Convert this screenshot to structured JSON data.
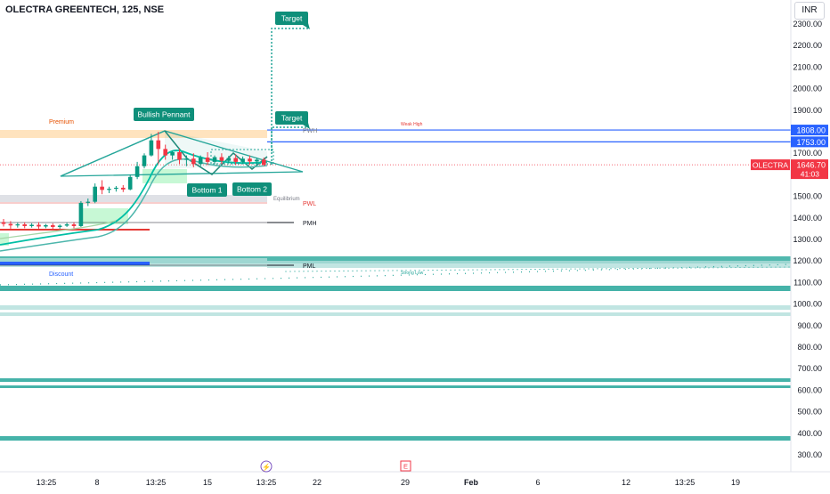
{
  "header": {
    "symbol_title": "OLECTRA GREENTECH, 125, NSE",
    "currency": "INR"
  },
  "colors": {
    "up": "#089981",
    "down": "#f23645",
    "pattern": "#26a69a",
    "blue_level": "#2962ff",
    "premium_zone": "#ffd9a8",
    "accent_label": "#0f8f7a"
  },
  "chart_data": {
    "type": "candlestick",
    "y_axis": {
      "min": 250,
      "max": 2400,
      "ticks": [
        2300,
        2200,
        2100,
        2000,
        1900,
        1800,
        1700,
        1600,
        1500,
        1400,
        1300,
        1200,
        1100,
        1000,
        900,
        800,
        700,
        600,
        500,
        400,
        300
      ],
      "tick_labels": [
        "2300.00",
        "2200.00",
        "2100.00",
        "2000.00",
        "1900.00",
        "1800.00",
        "1700.00",
        "1600.00",
        "1500.00",
        "1400.00",
        "1300.00",
        "1200.00",
        "1100.00",
        "1000.00",
        "900.00",
        "800.00",
        "700.00",
        "600.00",
        "500.00",
        "400.00",
        "300.00"
      ]
    },
    "x_axis": {
      "labels": [
        "13:25",
        "8",
        "13:25",
        "15",
        "13:25",
        "22",
        "29",
        "Feb",
        "6",
        "12",
        "13:25",
        "19"
      ]
    },
    "candles": [
      {
        "o": 1380,
        "h": 1395,
        "c": 1372,
        "l": 1360
      },
      {
        "o": 1372,
        "h": 1385,
        "c": 1365,
        "l": 1350
      },
      {
        "o": 1365,
        "h": 1378,
        "c": 1370,
        "l": 1355
      },
      {
        "o": 1370,
        "h": 1380,
        "c": 1362,
        "l": 1352
      },
      {
        "o": 1362,
        "h": 1375,
        "c": 1368,
        "l": 1355
      },
      {
        "o": 1368,
        "h": 1380,
        "c": 1360,
        "l": 1350
      },
      {
        "o": 1360,
        "h": 1372,
        "c": 1366,
        "l": 1352
      },
      {
        "o": 1366,
        "h": 1375,
        "c": 1358,
        "l": 1348
      },
      {
        "o": 1358,
        "h": 1370,
        "c": 1364,
        "l": 1350
      },
      {
        "o": 1364,
        "h": 1378,
        "c": 1370,
        "l": 1358
      },
      {
        "o": 1370,
        "h": 1380,
        "c": 1362,
        "l": 1352
      },
      {
        "o": 1362,
        "h": 1478,
        "c": 1470,
        "l": 1358
      },
      {
        "o": 1470,
        "h": 1490,
        "c": 1475,
        "l": 1455
      },
      {
        "o": 1475,
        "h": 1560,
        "c": 1545,
        "l": 1468
      },
      {
        "o": 1545,
        "h": 1575,
        "c": 1530,
        "l": 1510
      },
      {
        "o": 1530,
        "h": 1545,
        "c": 1535,
        "l": 1515
      },
      {
        "o": 1535,
        "h": 1548,
        "c": 1540,
        "l": 1522
      },
      {
        "o": 1540,
        "h": 1552,
        "c": 1532,
        "l": 1520
      },
      {
        "o": 1532,
        "h": 1600,
        "c": 1590,
        "l": 1528
      },
      {
        "o": 1590,
        "h": 1660,
        "c": 1640,
        "l": 1580
      },
      {
        "o": 1640,
        "h": 1700,
        "c": 1690,
        "l": 1630
      },
      {
        "o": 1690,
        "h": 1790,
        "c": 1760,
        "l": 1685
      },
      {
        "o": 1760,
        "h": 1800,
        "c": 1720,
        "l": 1650
      },
      {
        "o": 1720,
        "h": 1740,
        "c": 1690,
        "l": 1670
      },
      {
        "o": 1690,
        "h": 1712,
        "c": 1705,
        "l": 1670
      },
      {
        "o": 1705,
        "h": 1720,
        "c": 1670,
        "l": 1650
      },
      {
        "o": 1670,
        "h": 1690,
        "c": 1675,
        "l": 1640
      },
      {
        "o": 1675,
        "h": 1700,
        "c": 1650,
        "l": 1635
      },
      {
        "o": 1650,
        "h": 1690,
        "c": 1680,
        "l": 1640
      },
      {
        "o": 1680,
        "h": 1705,
        "c": 1660,
        "l": 1645
      },
      {
        "o": 1660,
        "h": 1690,
        "c": 1682,
        "l": 1650
      },
      {
        "o": 1682,
        "h": 1700,
        "c": 1665,
        "l": 1650
      },
      {
        "o": 1665,
        "h": 1688,
        "c": 1678,
        "l": 1655
      },
      {
        "o": 1678,
        "h": 1695,
        "c": 1660,
        "l": 1645
      },
      {
        "o": 1660,
        "h": 1685,
        "c": 1675,
        "l": 1650
      },
      {
        "o": 1675,
        "h": 1690,
        "c": 1662,
        "l": 1648
      },
      {
        "o": 1662,
        "h": 1680,
        "c": 1670,
        "l": 1652
      },
      {
        "o": 1670,
        "h": 1680,
        "c": 1647,
        "l": 1640
      }
    ],
    "levels": [
      {
        "label": "1808.00",
        "value": 1808,
        "color": "#2962ff"
      },
      {
        "label": "1753.00",
        "value": 1753,
        "color": "#2962ff"
      }
    ],
    "last_price": {
      "symbol": "OLECTRA",
      "value": "1646.70",
      "countdown": "41:03",
      "price": 1646.7
    },
    "annotations": {
      "bullish_pennant": "Bullish Pennant",
      "target_upper": "Target",
      "target_lower": "Target",
      "bottom_1": "Bottom 1",
      "bottom_2": "Bottom 2",
      "premium": "Premium",
      "equilibrium": "Equilibrium",
      "discount": "Discount",
      "pwh": "PWH",
      "pwl": "PWL",
      "pmh": "PMH",
      "pml": "PML",
      "weak_high": "Weak High",
      "strong_low": "Strong Low"
    },
    "target_upper_price": 2290,
    "target_lower_price": 1820
  },
  "bottom_icons": {
    "dividend": "⚡",
    "earnings": "E"
  }
}
